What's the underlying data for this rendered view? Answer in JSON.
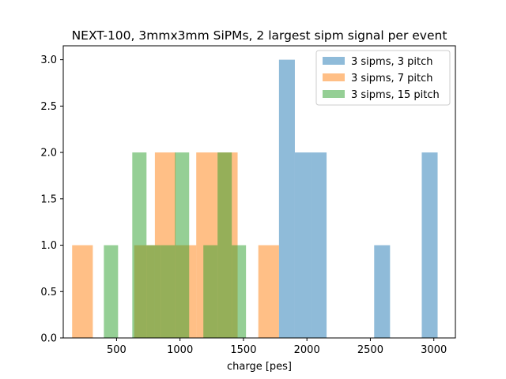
{
  "chart_data": {
    "type": "bar",
    "subtype": "histogram",
    "title": "NEXT-100, 3mmx3mm SiPMs, 2 largest sipm signal per event",
    "xlabel": "charge [pes]",
    "ylabel": "",
    "xlim": [
      80,
      3170
    ],
    "ylim": [
      0,
      3.15
    ],
    "xticks": [
      500,
      1000,
      1500,
      2000,
      2500,
      3000
    ],
    "yticks": [
      0.0,
      0.5,
      1.0,
      1.5,
      2.0,
      2.5,
      3.0
    ],
    "grid": false,
    "legend_position": "upper-right",
    "series": [
      {
        "name": "3 sipms, 3 pitch",
        "color": "#1f77b4",
        "opacity": 0.5,
        "bin_edges": [
          1780,
          1905,
          2030,
          2155,
          2280,
          2405,
          2530,
          2655,
          2780,
          2905,
          3030
        ],
        "counts": [
          3,
          2,
          2,
          0,
          0,
          0,
          1,
          0,
          0,
          2
        ]
      },
      {
        "name": "3 sipms, 7 pitch",
        "color": "#ff7f0e",
        "opacity": 0.5,
        "bin_edges": [
          150,
          313,
          476,
          639,
          802,
          965,
          1128,
          1291,
          1454,
          1617,
          1780
        ],
        "counts": [
          1,
          0,
          0,
          1,
          2,
          1,
          2,
          2,
          0,
          1
        ]
      },
      {
        "name": "3 sipms, 15 pitch",
        "color": "#2ca02c",
        "opacity": 0.5,
        "bin_edges": [
          400,
          512,
          624,
          736,
          848,
          960,
          1072,
          1184,
          1296,
          1408,
          1520
        ],
        "counts": [
          1,
          0,
          2,
          1,
          1,
          2,
          0,
          1,
          2,
          1
        ]
      }
    ],
    "legend": [
      "3 sipms, 3 pitch",
      "3 sipms, 7 pitch",
      "3 sipms, 15 pitch"
    ]
  }
}
